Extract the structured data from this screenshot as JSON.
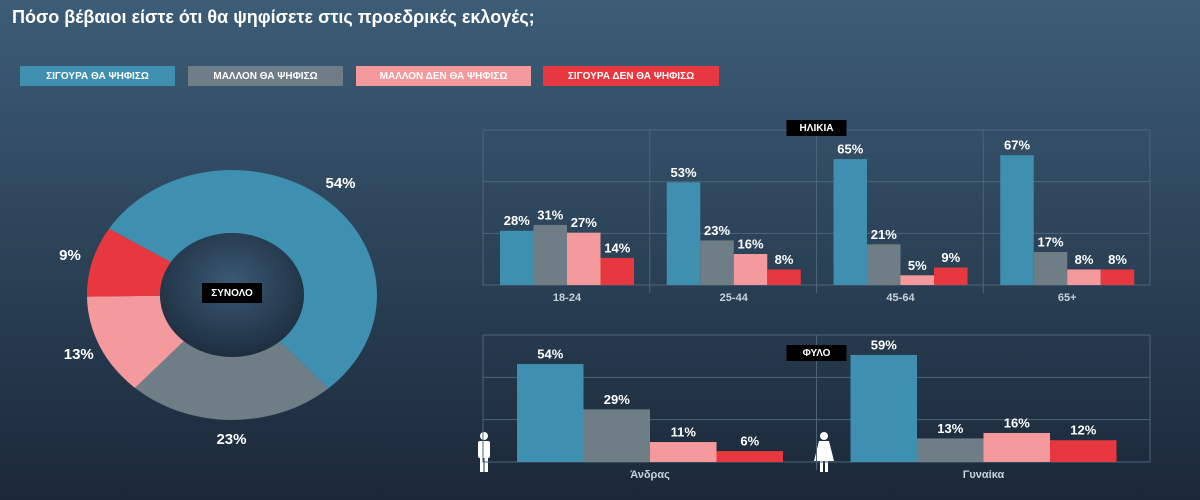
{
  "title": "Πόσο βέβαιοι είστε ότι θα ψηφίσετε στις προεδρικές εκλογές;",
  "chart_data": [
    {
      "type": "pie",
      "donut": true,
      "center_label": "ΣΥΝΟΛΟ",
      "categories": [
        "ΣΙΓΟΥΡΑ ΘΑ ΨΗΦΙΣΩ",
        "ΜΑΛΛΟΝ ΘΑ ΨΗΦΙΣΩ",
        "ΜΑΛΛΟΝ ΔΕΝ ΘΑ ΨΗΦΙΣΩ",
        "ΣΙΓΟΥΡΑ ΔΕΝ ΘΑ ΨΗΦΙΣΩ"
      ],
      "colors": [
        "#3f8fb0",
        "#6e7d86",
        "#f59a9c",
        "#e8383f"
      ],
      "values": [
        54,
        23,
        13,
        9
      ],
      "value_labels": [
        "54%",
        "23%",
        "13%",
        "9%"
      ]
    },
    {
      "type": "bar",
      "title": "ΗΛΙΚΙΑ",
      "categories": [
        "18-24",
        "25-44",
        "45-64",
        "65+"
      ],
      "ylim": [
        0,
        80
      ],
      "series": [
        {
          "color": "#3f8fb0",
          "values": [
            28,
            53,
            65,
            67
          ],
          "value_labels": [
            "28%",
            "53%",
            "65%",
            "67%"
          ]
        },
        {
          "color": "#6e7d86",
          "values": [
            31,
            23,
            21,
            17
          ],
          "value_labels": [
            "31%",
            "23%",
            "21%",
            "17%"
          ]
        },
        {
          "color": "#f59a9c",
          "values": [
            27,
            16,
            5,
            8
          ],
          "value_labels": [
            "27%",
            "16%",
            "5%",
            "8%"
          ]
        },
        {
          "color": "#e8383f",
          "values": [
            14,
            8,
            9,
            8
          ],
          "value_labels": [
            "14%",
            "8%",
            "9%",
            "8%"
          ]
        }
      ]
    },
    {
      "type": "bar",
      "title": "ΦΥΛΟ",
      "categories": [
        "Άνδρας",
        "Γυναίκα"
      ],
      "ylim": [
        0,
        70
      ],
      "series": [
        {
          "color": "#3f8fb0",
          "values": [
            54,
            59
          ],
          "value_labels": [
            "54%",
            "59%"
          ]
        },
        {
          "color": "#6e7d86",
          "values": [
            29,
            13
          ],
          "value_labels": [
            "29%",
            "13%"
          ]
        },
        {
          "color": "#f59a9c",
          "values": [
            11,
            16
          ],
          "value_labels": [
            "11%",
            "16%"
          ]
        },
        {
          "color": "#e8383f",
          "values": [
            6,
            12
          ],
          "value_labels": [
            "6%",
            "12%"
          ]
        }
      ]
    }
  ]
}
